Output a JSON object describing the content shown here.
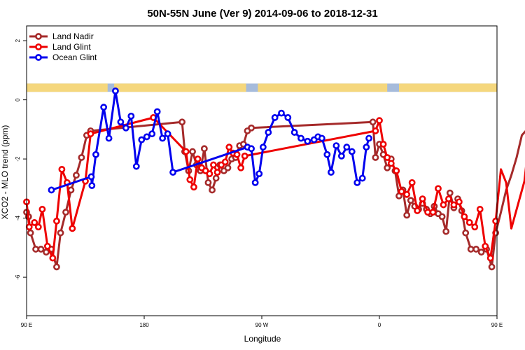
{
  "chart_data": {
    "type": "line",
    "title": "50N-55N June (Ver 9)   2014-09-06 to 2018-12-31",
    "xlabel": "Longitude",
    "ylabel": "XCO2 - MLO trend (ppm)",
    "x_axis": {
      "range": [
        90,
        450
      ],
      "ticks": [
        {
          "value": 90,
          "label": "90 E"
        },
        {
          "value": 180,
          "label": "180"
        },
        {
          "value": 270,
          "label": "90 W"
        },
        {
          "value": 360,
          "label": "0"
        },
        {
          "value": 450,
          "label": "90 E"
        },
        {
          "value": 540,
          "label": "180"
        }
      ]
    },
    "y_axis": {
      "range": [
        -7.3,
        2.5
      ],
      "ticks": [
        {
          "value": 2,
          "label": "2"
        },
        {
          "value": 0,
          "label": "0"
        },
        {
          "value": -2,
          "label": "-2"
        },
        {
          "value": -4,
          "label": "-4"
        },
        {
          "value": -6,
          "label": "-6"
        }
      ]
    },
    "legend_position": "top-left",
    "grid": false,
    "land_mask_band": {
      "y_range": [
        0.27,
        0.55
      ],
      "land_color": "#f5d77d",
      "ocean_color": "#a6bbdb",
      "land_segments": [
        [
          90,
          152
        ],
        [
          157,
          258
        ],
        [
          267,
          366
        ],
        [
          375,
          492
        ],
        [
          497,
          540
        ]
      ]
    },
    "series": [
      {
        "name": "Land Nadir",
        "color": "#a52a2a",
        "points": [
          [
            90,
            -3.8
          ],
          [
            91.5,
            -3.95
          ],
          [
            93,
            -4.5
          ],
          [
            97,
            -5.05
          ],
          [
            101,
            -5.05
          ],
          [
            105,
            -5.15
          ],
          [
            109,
            -5.05
          ],
          [
            113,
            -5.65
          ],
          [
            116,
            -4.5
          ],
          [
            120,
            -3.8
          ],
          [
            124,
            -3.05
          ],
          [
            128,
            -2.55
          ],
          [
            132,
            -1.95
          ],
          [
            136,
            -1.2
          ],
          [
            139,
            -1.05
          ],
          [
            209,
            -0.75
          ],
          [
            211,
            -1.75
          ],
          [
            214,
            -2.4
          ],
          [
            217,
            -1.75
          ],
          [
            220,
            -2.2
          ],
          [
            223,
            -2.4
          ],
          [
            226,
            -1.65
          ],
          [
            229,
            -2.8
          ],
          [
            232,
            -3.05
          ],
          [
            235,
            -2.65
          ],
          [
            238,
            -2.2
          ],
          [
            241,
            -2.4
          ],
          [
            244,
            -2.3
          ],
          [
            247,
            -2.0
          ],
          [
            250,
            -1.95
          ],
          [
            253,
            -1.55
          ],
          [
            256,
            -1.5
          ],
          [
            259,
            -1.05
          ],
          [
            262,
            -0.95
          ],
          [
            355,
            -0.75
          ],
          [
            357,
            -1.95
          ],
          [
            360,
            -1.5
          ],
          [
            363,
            -1.85
          ],
          [
            366,
            -2.3
          ],
          [
            369,
            -2.0
          ],
          [
            372,
            -2.4
          ],
          [
            375,
            -3.25
          ],
          [
            378,
            -3.05
          ],
          [
            381,
            -3.9
          ],
          [
            384,
            -3.4
          ],
          [
            387,
            -3.6
          ],
          [
            390,
            -3.7
          ],
          [
            393,
            -3.5
          ],
          [
            396,
            -3.7
          ],
          [
            399,
            -3.85
          ],
          [
            402,
            -3.6
          ],
          [
            405,
            -3.85
          ],
          [
            408,
            -3.95
          ],
          [
            411,
            -4.45
          ],
          [
            414,
            -3.15
          ],
          [
            417,
            -3.65
          ],
          [
            420,
            -3.35
          ],
          [
            423,
            -3.75
          ],
          [
            426,
            -4.5
          ],
          [
            430,
            -5.05
          ],
          [
            434,
            -5.05
          ],
          [
            438,
            -5.15
          ],
          [
            442,
            -5.05
          ],
          [
            446,
            -5.65
          ],
          [
            449,
            -4.5
          ],
          [
            453,
            -3.8
          ],
          [
            457,
            -3.05
          ],
          [
            461,
            -2.55
          ],
          [
            465,
            -1.95
          ],
          [
            469,
            -1.2
          ],
          [
            472,
            -1.05
          ]
        ]
      },
      {
        "name": "Land Glint",
        "color": "#ee0000",
        "points": [
          [
            90,
            -3.45
          ],
          [
            92,
            -4.3
          ],
          [
            96,
            -4.15
          ],
          [
            99,
            -4.3
          ],
          [
            102,
            -3.7
          ],
          [
            106,
            -4.95
          ],
          [
            110,
            -5.35
          ],
          [
            113,
            -4.1
          ],
          [
            117,
            -2.35
          ],
          [
            121,
            -2.8
          ],
          [
            125,
            -4.35
          ],
          [
            135,
            -2.75
          ],
          [
            139,
            -1.15
          ],
          [
            187,
            -0.6
          ],
          [
            212,
            -1.75
          ],
          [
            215,
            -2.7
          ],
          [
            218,
            -2.95
          ],
          [
            221,
            -2.0
          ],
          [
            224,
            -2.3
          ],
          [
            227,
            -2.4
          ],
          [
            230,
            -2.5
          ],
          [
            233,
            -2.2
          ],
          [
            236,
            -2.45
          ],
          [
            239,
            -2.2
          ],
          [
            242,
            -2.1
          ],
          [
            245,
            -1.6
          ],
          [
            248,
            -1.8
          ],
          [
            251,
            -1.85
          ],
          [
            254,
            -2.3
          ],
          [
            257,
            -1.9
          ],
          [
            357,
            -1.05
          ],
          [
            360,
            -0.7
          ],
          [
            363,
            -1.5
          ],
          [
            366,
            -1.95
          ],
          [
            369,
            -2.15
          ],
          [
            373,
            -2.4
          ],
          [
            377,
            -3.1
          ],
          [
            381,
            -3.2
          ],
          [
            385,
            -2.8
          ],
          [
            389,
            -3.75
          ],
          [
            393,
            -3.35
          ],
          [
            397,
            -3.8
          ],
          [
            401,
            -3.8
          ],
          [
            405,
            -3.0
          ],
          [
            409,
            -3.55
          ],
          [
            413,
            -3.35
          ],
          [
            417,
            -3.55
          ],
          [
            421,
            -3.45
          ],
          [
            425,
            -3.95
          ],
          [
            429,
            -4.15
          ],
          [
            433,
            -4.3
          ],
          [
            437,
            -3.7
          ],
          [
            441,
            -4.95
          ],
          [
            445,
            -5.35
          ],
          [
            449,
            -4.1
          ],
          [
            453,
            -2.35
          ],
          [
            457,
            -2.8
          ],
          [
            461,
            -4.35
          ],
          [
            471,
            -2.75
          ],
          [
            475,
            -1.15
          ]
        ]
      },
      {
        "name": "Ocean Glint",
        "color": "#0000ee",
        "points": [
          [
            109,
            -3.05
          ],
          [
            139.5,
            -2.6
          ],
          [
            140,
            -2.9
          ],
          [
            143,
            -1.85
          ],
          [
            149,
            -0.25
          ],
          [
            153,
            -1.3
          ],
          [
            158,
            0.3
          ],
          [
            162,
            -0.75
          ],
          [
            166,
            -0.95
          ],
          [
            170,
            -0.55
          ],
          [
            174,
            -2.25
          ],
          [
            178,
            -1.35
          ],
          [
            182,
            -1.25
          ],
          [
            186,
            -1.15
          ],
          [
            190,
            -0.4
          ],
          [
            194,
            -1.3
          ],
          [
            198,
            -1.15
          ],
          [
            202,
            -2.45
          ],
          [
            259,
            -1.6
          ],
          [
            262,
            -1.65
          ],
          [
            265,
            -2.8
          ],
          [
            268,
            -2.5
          ],
          [
            271,
            -1.6
          ],
          [
            275,
            -1.1
          ],
          [
            280,
            -0.6
          ],
          [
            285,
            -0.45
          ],
          [
            290,
            -0.6
          ],
          [
            295,
            -1.1
          ],
          [
            300,
            -1.3
          ],
          [
            305,
            -1.4
          ],
          [
            310,
            -1.35
          ],
          [
            313,
            -1.25
          ],
          [
            316,
            -1.3
          ],
          [
            320,
            -1.85
          ],
          [
            323,
            -2.45
          ],
          [
            327,
            -1.55
          ],
          [
            331,
            -1.9
          ],
          [
            335,
            -1.6
          ],
          [
            339,
            -1.75
          ],
          [
            343,
            -2.8
          ],
          [
            347,
            -2.65
          ],
          [
            350,
            -1.6
          ],
          [
            352,
            -1.3
          ]
        ]
      }
    ]
  }
}
